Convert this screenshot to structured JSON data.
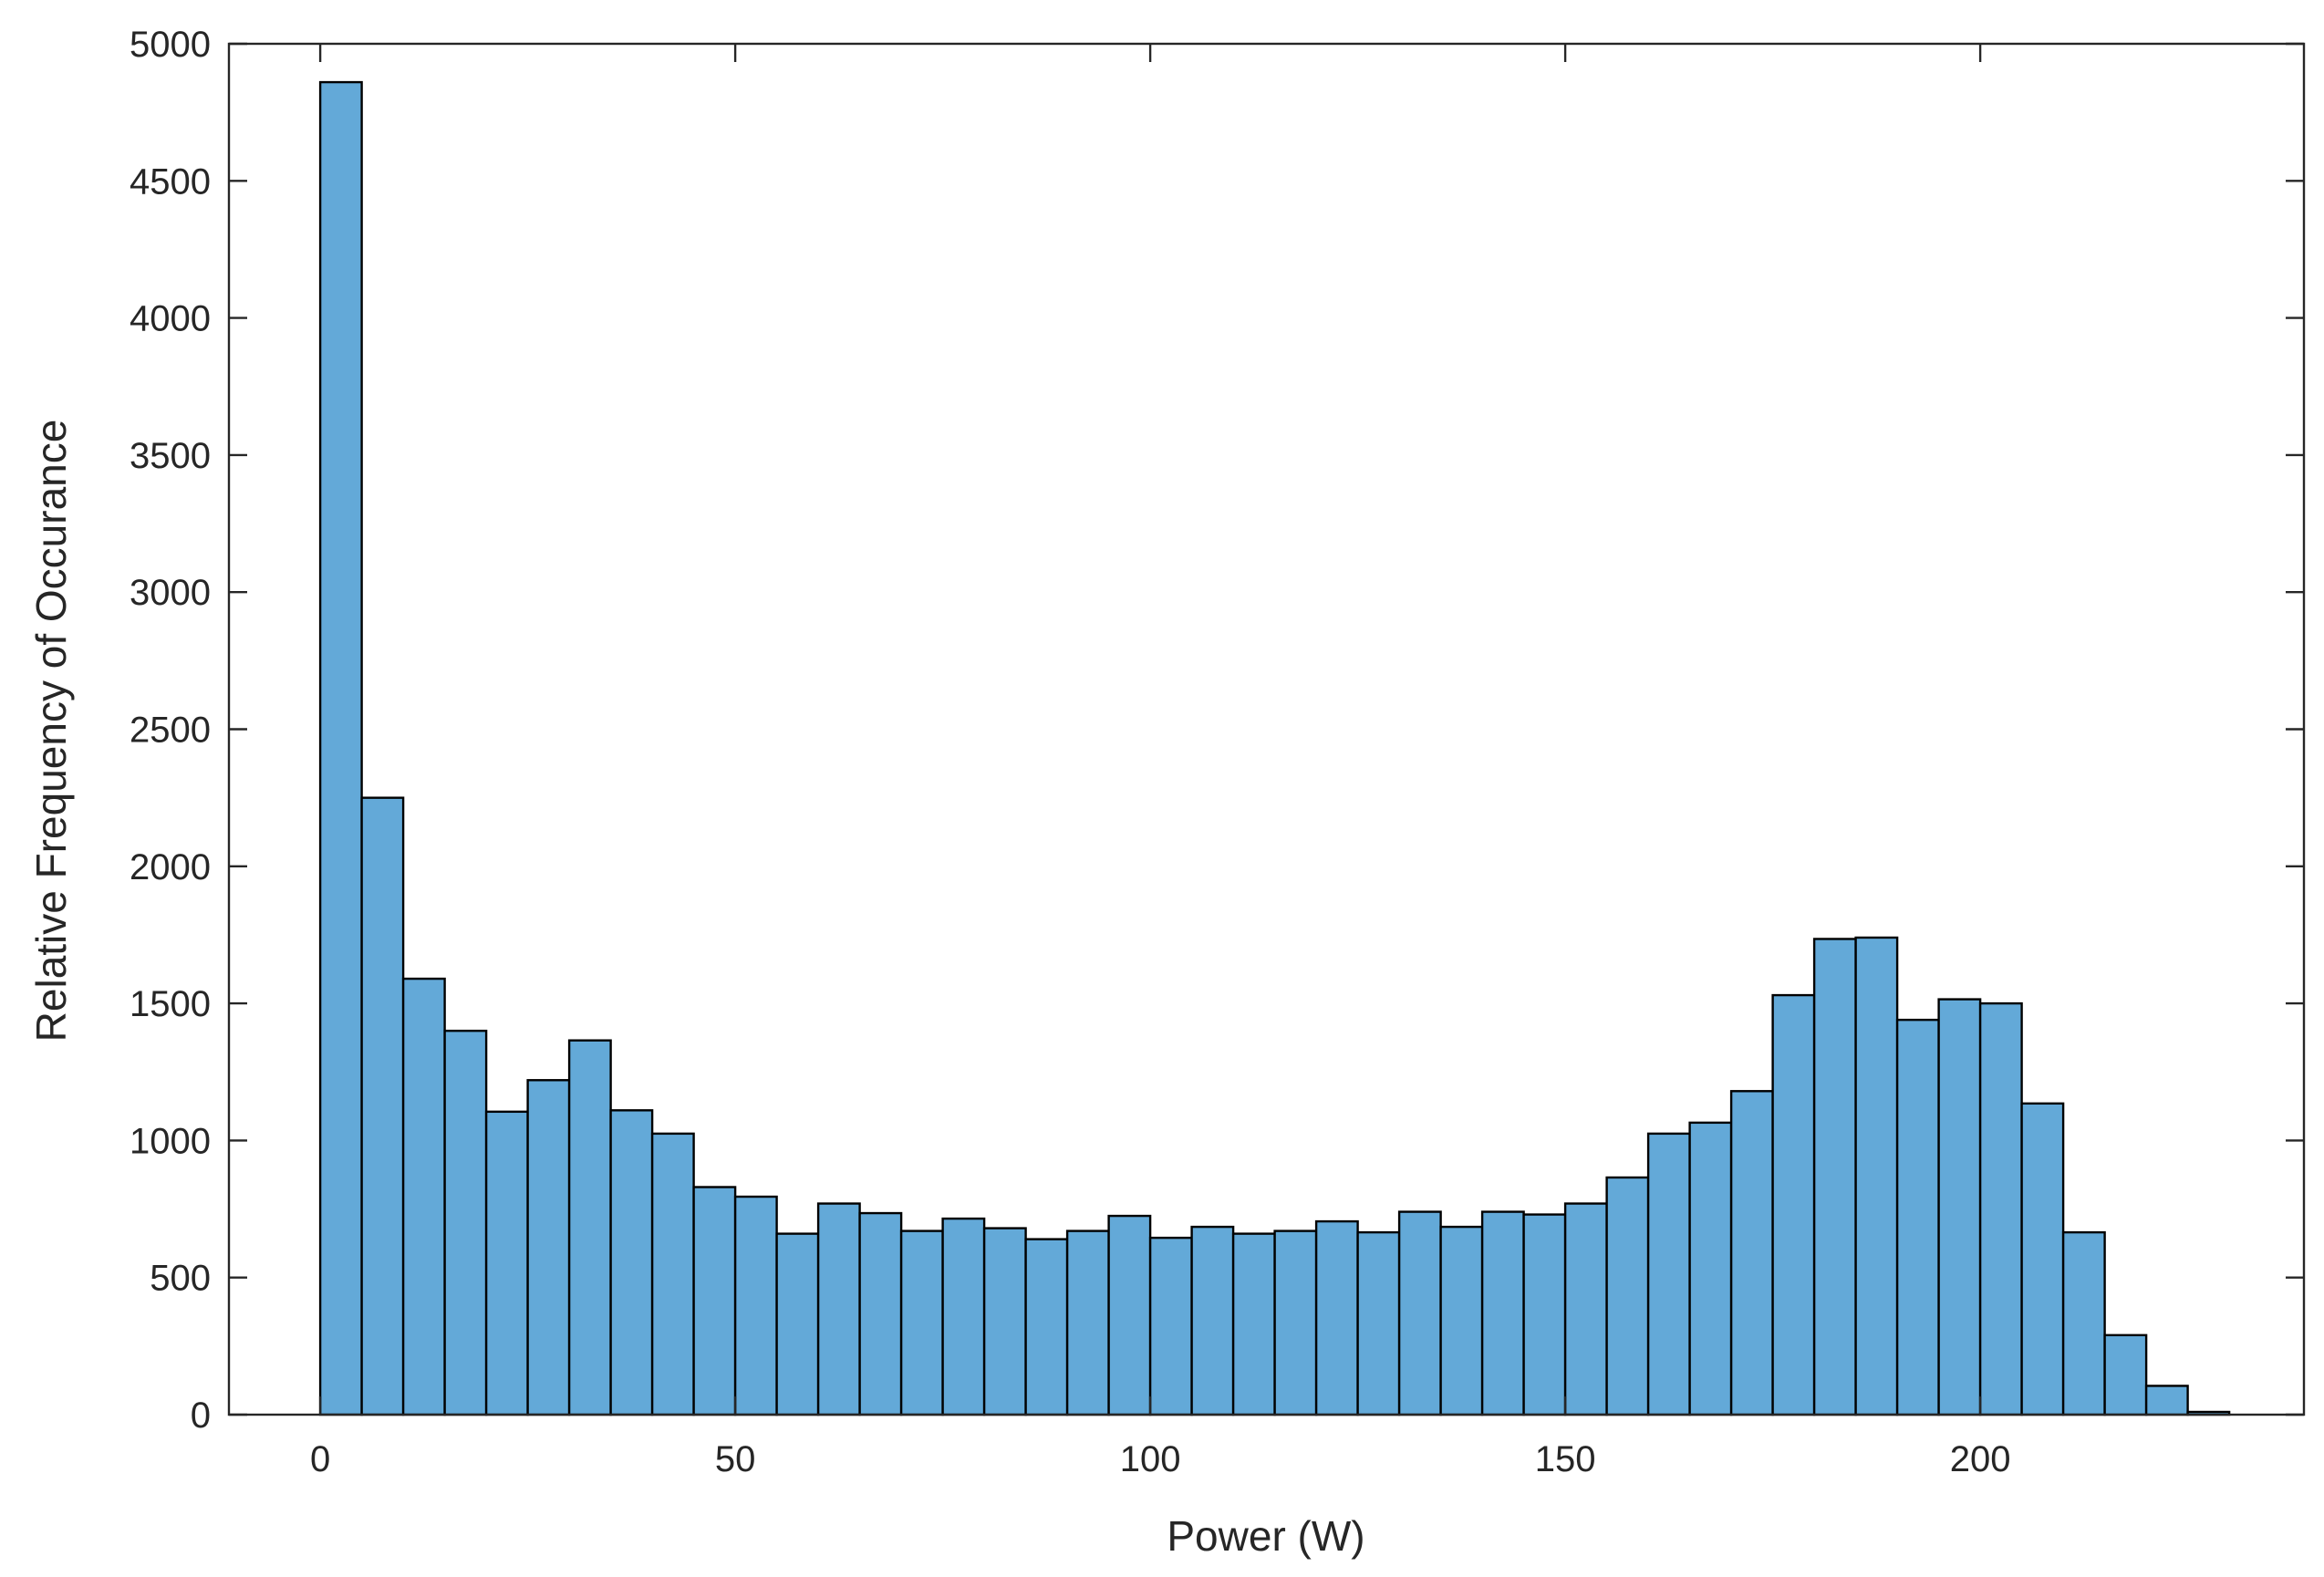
{
  "chart_data": {
    "type": "bar",
    "subtype": "histogram",
    "title": "",
    "xlabel": "Power (W)",
    "ylabel": "Relative Frequency of Occurance",
    "xlim": [
      -11,
      239
    ],
    "ylim": [
      0,
      5000
    ],
    "x_ticks": [
      0,
      50,
      100,
      150,
      200
    ],
    "y_ticks": [
      0,
      500,
      1000,
      1500,
      2000,
      2500,
      3000,
      3500,
      4000,
      4500,
      5000
    ],
    "bin_width": 5,
    "bin_edges_start": 0,
    "values": [
      4860,
      2250,
      1590,
      1400,
      1105,
      1220,
      1365,
      1110,
      1025,
      830,
      795,
      660,
      770,
      735,
      670,
      715,
      680,
      640,
      670,
      725,
      645,
      685,
      660,
      670,
      705,
      665,
      740,
      685,
      740,
      730,
      770,
      865,
      1025,
      1065,
      1180,
      1530,
      1735,
      1740,
      1440,
      1515,
      1500,
      1135,
      665,
      290,
      105,
      10
    ],
    "bar_color": "#63A9D8",
    "edge_color": "#000000",
    "grid": false,
    "box": true,
    "legend": null
  }
}
